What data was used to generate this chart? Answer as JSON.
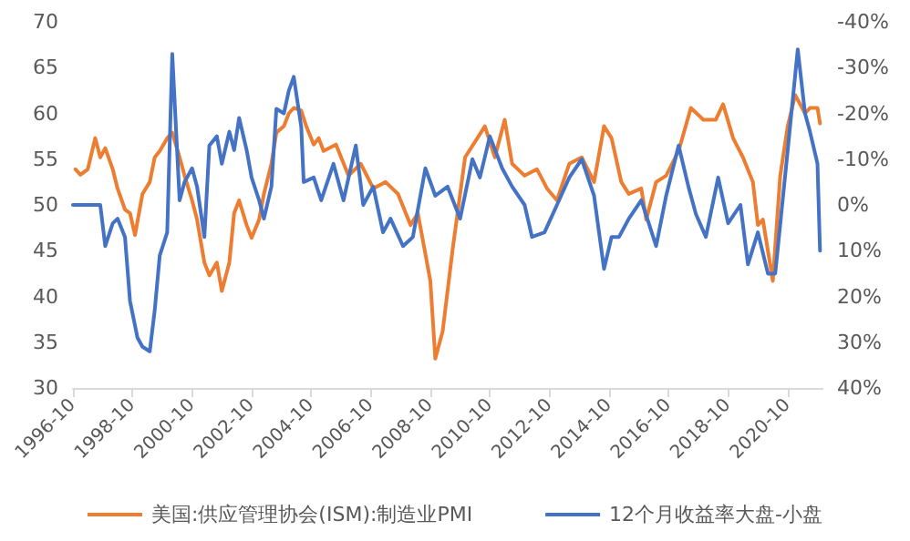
{
  "chart_data": {
    "type": "line",
    "legend": "bottom",
    "grid": false,
    "marker": "none",
    "line_style": "solid",
    "xlim": [
      "1996-10",
      "2021-12"
    ],
    "xticks": [
      "1996-10",
      "1998-10",
      "2000-10",
      "2002-10",
      "2004-10",
      "2006-10",
      "2008-10",
      "2010-10",
      "2012-10",
      "2014-10",
      "2016-10",
      "2018-10",
      "2020-10"
    ],
    "ylim": [
      30,
      70
    ],
    "yticks": [
      30,
      35,
      40,
      45,
      50,
      55,
      60,
      65,
      70
    ],
    "y2lim": [
      40,
      -40
    ],
    "y2ticks": [
      {
        "value": 40,
        "label": "40%"
      },
      {
        "value": 30,
        "label": "30%"
      },
      {
        "value": 20,
        "label": "20%"
      },
      {
        "value": 10,
        "label": "10%"
      },
      {
        "value": 0,
        "label": "0%"
      },
      {
        "value": -10,
        "label": "-10%"
      },
      {
        "value": -20,
        "label": "-20%"
      },
      {
        "value": -30,
        "label": "-30%"
      },
      {
        "value": -40,
        "label": "-40%"
      }
    ],
    "series": [
      {
        "name": "美国:供应管理协会(ISM):制造业PMI",
        "color": "#ed7d31",
        "x": [
          "1996-11",
          "1997-01",
          "1997-04",
          "1997-07",
          "1997-09",
          "1997-11",
          "1998-02",
          "1998-04",
          "1998-07",
          "1998-09",
          "1998-11",
          "1999-02",
          "1999-05",
          "1999-07",
          "1999-09",
          "1999-12",
          "2000-02",
          "2000-05",
          "2000-07",
          "2000-10",
          "2000-12",
          "2001-03",
          "2001-05",
          "2001-08",
          "2001-10",
          "2002-01",
          "2002-03",
          "2002-05",
          "2002-08",
          "2002-10",
          "2003-01",
          "2003-03",
          "2003-06",
          "2003-08",
          "2003-11",
          "2004-01",
          "2004-03",
          "2004-06",
          "2004-08",
          "2004-11",
          "2005-01",
          "2005-03",
          "2005-08",
          "2006-01",
          "2006-06",
          "2006-11",
          "2007-04",
          "2007-09",
          "2008-02",
          "2008-05",
          "2008-10",
          "2008-12",
          "2009-03",
          "2009-07",
          "2009-12",
          "2010-05",
          "2010-08",
          "2010-12",
          "2011-04",
          "2011-07",
          "2011-12",
          "2012-05",
          "2012-09",
          "2013-01",
          "2013-06",
          "2013-11",
          "2014-04",
          "2014-08",
          "2014-11",
          "2015-03",
          "2015-06",
          "2015-11",
          "2016-01",
          "2016-05",
          "2016-09",
          "2017-02",
          "2017-07",
          "2017-12",
          "2018-05",
          "2018-08",
          "2018-12",
          "2019-04",
          "2019-08",
          "2019-10",
          "2019-12",
          "2020-04",
          "2020-07",
          "2020-10",
          "2021-01",
          "2021-05",
          "2021-07",
          "2021-10",
          "2021-11"
        ],
        "values": [
          53.9,
          53.3,
          53.9,
          57.3,
          55.2,
          56.2,
          53.9,
          51.8,
          49.5,
          49.1,
          46.7,
          51.2,
          52.5,
          55.2,
          55.9,
          57.3,
          57.9,
          55.2,
          53.2,
          50.5,
          48.4,
          43.7,
          42.3,
          43.7,
          40.6,
          43.7,
          49.1,
          50.5,
          47.8,
          46.4,
          48.4,
          51.2,
          54.5,
          57.9,
          58.6,
          60.0,
          60.6,
          60.3,
          58.6,
          56.6,
          57.3,
          55.9,
          56.6,
          53.2,
          54.5,
          51.8,
          52.5,
          51.2,
          47.8,
          49.1,
          41.7,
          33.2,
          36.2,
          45.1,
          55.2,
          57.3,
          58.6,
          55.2,
          59.3,
          54.5,
          53.2,
          53.9,
          51.8,
          50.5,
          54.5,
          55.2,
          52.5,
          58.6,
          57.3,
          52.5,
          51.2,
          51.8,
          48.4,
          52.5,
          53.2,
          55.9,
          60.6,
          59.3,
          59.3,
          61.0,
          57.3,
          55.2,
          52.5,
          47.8,
          48.4,
          41.7,
          53.2,
          58.6,
          62.0,
          60.0,
          60.6,
          60.6,
          58.9
        ]
      },
      {
        "name": "12个月收益率大盘-小盘",
        "color": "#4472c4",
        "axis": "y2",
        "x": [
          "1996-10",
          "1997-09",
          "1997-11",
          "1998-02",
          "1998-04",
          "1998-07",
          "1998-09",
          "1998-12",
          "1999-02",
          "1999-05",
          "1999-07",
          "1999-09",
          "1999-12",
          "2000-02",
          "2000-05",
          "2000-07",
          "2000-10",
          "2000-12",
          "2001-03",
          "2001-05",
          "2001-08",
          "2001-10",
          "2002-01",
          "2002-03",
          "2002-05",
          "2002-08",
          "2002-10",
          "2003-01",
          "2003-03",
          "2003-06",
          "2003-08",
          "2003-11",
          "2004-01",
          "2004-03",
          "2004-06",
          "2004-07",
          "2004-11",
          "2005-02",
          "2005-07",
          "2005-11",
          "2006-04",
          "2006-07",
          "2006-11",
          "2007-03",
          "2007-06",
          "2007-11",
          "2008-03",
          "2008-08",
          "2008-12",
          "2009-05",
          "2009-10",
          "2010-03",
          "2010-06",
          "2010-10",
          "2011-03",
          "2011-07",
          "2011-12",
          "2012-03",
          "2012-08",
          "2013-01",
          "2013-06",
          "2013-11",
          "2014-04",
          "2014-08",
          "2014-11",
          "2015-02",
          "2015-06",
          "2015-11",
          "2016-02",
          "2016-05",
          "2016-09",
          "2017-02",
          "2017-06",
          "2017-09",
          "2018-01",
          "2018-06",
          "2018-10",
          "2019-03",
          "2019-06",
          "2019-10",
          "2020-02",
          "2020-05",
          "2020-10",
          "2021-02",
          "2021-05",
          "2021-07",
          "2021-10",
          "2021-11"
        ],
        "values": [
          0,
          0,
          9,
          4,
          3,
          7,
          21,
          29,
          31,
          32,
          23,
          11,
          6,
          -33,
          -1,
          -5,
          -8,
          -4,
          7,
          -13,
          -15,
          -9,
          -16,
          -12,
          -19,
          -12,
          -6,
          -1,
          3,
          -4,
          -21,
          -20,
          -25,
          -28,
          -17,
          -5,
          -6,
          -1,
          -9,
          -1,
          -13,
          0,
          -4,
          6,
          3,
          9,
          7,
          -8,
          -2,
          -4,
          3,
          -10,
          -6,
          -15,
          -8,
          -4,
          0,
          7,
          6,
          0,
          -6,
          -10,
          -2,
          14,
          7,
          7,
          3,
          -1,
          4,
          9,
          -2,
          -13,
          -4,
          2,
          7,
          -6,
          4,
          0,
          13,
          6,
          15,
          15,
          -12,
          -34,
          -20,
          -16,
          -9,
          10
        ]
      }
    ]
  }
}
